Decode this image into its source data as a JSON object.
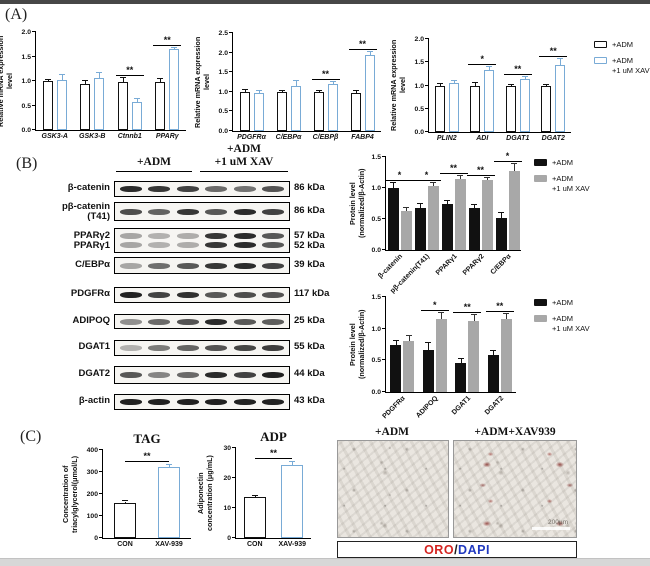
{
  "panels": {
    "a": "(A)",
    "b": "(B)",
    "c": "(C)"
  },
  "colors": {
    "bar_blue_outline": "#79abd6",
    "bar_black": "#111111",
    "bar_gray": "#a8a8a8",
    "oro_red": "#d42421",
    "dapi_blue": "#2039c0"
  },
  "legend_mrna": {
    "items": [
      {
        "label": "+ADM",
        "swatch": "outline-black"
      },
      {
        "label": "+ADM\n+1 uM XAV",
        "swatch": "outline-blue"
      }
    ]
  },
  "legend_protein": {
    "items": [
      {
        "label": "+ADM",
        "swatch": "solid-black"
      },
      {
        "label": "+ADM\n+1 uM XAV",
        "swatch": "solid-gray"
      }
    ]
  },
  "chart_data": [
    {
      "id": "a1",
      "type": "bar",
      "title": "",
      "xlabel": "",
      "ylabel": "Relative mRNA expression level",
      "ylim": [
        0,
        2.0
      ],
      "yticks": [
        "0.0",
        "0.5",
        "1.0",
        "1.5",
        "2.0"
      ],
      "categories": [
        "GSK3-A",
        "GSK3-B",
        "Ctnnb1",
        "PPARγ"
      ],
      "series": [
        {
          "name": "+ADM",
          "values": [
            1.0,
            0.93,
            0.98,
            0.98
          ],
          "errors": [
            0.03,
            0.08,
            0.09,
            0.06
          ]
        },
        {
          "name": "+ADM +1 uM XAV",
          "values": [
            1.03,
            1.07,
            0.58,
            1.65
          ],
          "errors": [
            0.09,
            0.1,
            0.06,
            0.03
          ]
        }
      ],
      "significance": [
        null,
        null,
        "**",
        "**"
      ]
    },
    {
      "id": "a2",
      "type": "bar",
      "title": "",
      "xlabel": "",
      "ylabel": "Relative mRNA expression level",
      "ylim": [
        0,
        2.5
      ],
      "yticks": [
        "0.0",
        "0.5",
        "1.0",
        "1.5",
        "2.0",
        "2.5"
      ],
      "categories": [
        "PDGFRα",
        "C/EBPα",
        "C/EBPβ",
        "FABP4"
      ],
      "series": [
        {
          "name": "+ADM",
          "values": [
            1.0,
            1.0,
            1.0,
            0.98
          ],
          "errors": [
            0.05,
            0.03,
            0.03,
            0.05
          ]
        },
        {
          "name": "+ADM +1 uM XAV",
          "values": [
            0.98,
            1.15,
            1.19,
            1.93
          ],
          "errors": [
            0.04,
            0.13,
            0.05,
            0.08
          ]
        }
      ],
      "significance": [
        null,
        null,
        "**",
        "**"
      ]
    },
    {
      "id": "a3",
      "type": "bar",
      "title": "",
      "xlabel": "",
      "ylabel": "Relative mRNA expression level",
      "ylim": [
        0,
        2.0
      ],
      "yticks": [
        "0.0",
        "0.5",
        "1.0",
        "1.5",
        "2.0"
      ],
      "categories": [
        "PLIN2",
        "ADI",
        "DGAT1",
        "DGAT2"
      ],
      "series": [
        {
          "name": "+ADM",
          "values": [
            0.98,
            0.98,
            0.98,
            0.98
          ],
          "errors": [
            0.05,
            0.08,
            0.03,
            0.03
          ]
        },
        {
          "name": "+ADM +1 uM XAV",
          "values": [
            1.05,
            1.33,
            1.15,
            1.45
          ],
          "errors": [
            0.05,
            0.07,
            0.04,
            0.12
          ]
        }
      ],
      "significance": [
        null,
        "*",
        "**",
        "**"
      ]
    },
    {
      "id": "b1",
      "type": "bar",
      "title": "",
      "xlabel": "",
      "ylabel": "Protein level\n(normalized/β-Actin)",
      "ylim": [
        0,
        1.5
      ],
      "yticks": [
        "0.0",
        "0.5",
        "1.0",
        "1.5"
      ],
      "categories": [
        "β-catenin",
        "pβ-catenin(T41)",
        "PPARγ1",
        "PPARγ2",
        "C/EBPα"
      ],
      "series": [
        {
          "name": "+ADM",
          "values": [
            1.0,
            0.68,
            0.75,
            0.68,
            0.51
          ],
          "errors": [
            0.08,
            0.07,
            0.04,
            0.04,
            0.09
          ]
        },
        {
          "name": "+ADM +1 uM XAV",
          "values": [
            0.63,
            1.04,
            1.15,
            1.13,
            1.27
          ],
          "errors": [
            0.04,
            0.04,
            0.05,
            0.03,
            0.12
          ]
        }
      ],
      "significance": [
        "*",
        "*",
        "**",
        "**",
        "*"
      ]
    },
    {
      "id": "b2",
      "type": "bar",
      "title": "",
      "xlabel": "",
      "ylabel": "Protein level\n(normalized/β-Actin)",
      "ylim": [
        0,
        1.5
      ],
      "yticks": [
        "0.0",
        "0.5",
        "1.0",
        "1.5"
      ],
      "categories": [
        "PDGFRα",
        "ADIPOQ",
        "DGAT1",
        "DGAT2"
      ],
      "series": [
        {
          "name": "+ADM",
          "values": [
            0.74,
            0.67,
            0.46,
            0.59
          ],
          "errors": [
            0.06,
            0.1,
            0.06,
            0.05
          ]
        },
        {
          "name": "+ADM +1 uM XAV",
          "values": [
            0.81,
            1.16,
            1.12,
            1.15
          ],
          "errors": [
            0.07,
            0.09,
            0.1,
            0.08
          ]
        }
      ],
      "significance": [
        null,
        "*",
        "**",
        "**"
      ]
    },
    {
      "id": "ctag",
      "type": "bar",
      "title": "TAG",
      "xlabel": "",
      "ylabel": "Concentration of triacylglycerol(μmol/L)",
      "ylim": [
        0,
        400
      ],
      "yticks": [
        "0",
        "100",
        "200",
        "300",
        "400"
      ],
      "categories": [
        "CON",
        "XAV-939"
      ],
      "series": [
        {
          "name": "",
          "values": [
            160,
            325
          ],
          "errors": [
            6,
            9
          ]
        }
      ],
      "significance_overall": "**"
    },
    {
      "id": "cadp",
      "type": "bar",
      "title": "ADP",
      "xlabel": "",
      "ylabel": "Adiponectin concentration (μg/mL)",
      "ylim": [
        0,
        30
      ],
      "yticks": [
        "0",
        "10",
        "20",
        "30"
      ],
      "categories": [
        "CON",
        "XAV-939"
      ],
      "series": [
        {
          "name": "",
          "values": [
            13.8,
            24.5
          ],
          "errors": [
            0.3,
            0.9
          ]
        }
      ],
      "significance_overall": "**"
    }
  ],
  "blots": {
    "headers": [
      "+ADM",
      "+ADM\n+1 uM XAV"
    ],
    "rows": [
      {
        "protein": "β-catenin",
        "kda": "86 kDa",
        "bands": 1,
        "intensities": [
          0.9,
          0.85,
          0.8,
          0.62,
          0.58,
          0.72
        ]
      },
      {
        "protein": "pβ-catenin\n(T41)",
        "kda": "86 kDa",
        "bands": 1,
        "intensities": [
          0.75,
          0.65,
          0.85,
          0.7,
          0.9,
          0.8
        ]
      },
      {
        "protein": "PPARγ2\nPPARγ1",
        "kda": "57 kDa\n52 kDa",
        "bands": 2,
        "intensities": [
          0.35,
          0.3,
          0.32,
          0.85,
          0.9,
          0.7
        ]
      },
      {
        "protein": "C/EBPα",
        "kda": "39 kDa",
        "bands": 1,
        "intensities": [
          0.35,
          0.6,
          0.7,
          0.85,
          0.9,
          0.8
        ]
      },
      {
        "protein": "PDGFRα",
        "kda": "117 kDa",
        "bands": 1,
        "intensities": [
          0.95,
          0.8,
          0.88,
          0.7,
          0.75,
          0.72
        ]
      },
      {
        "protein": "ADIPOQ",
        "kda": "25 kDa",
        "bands": 1,
        "intensities": [
          0.45,
          0.62,
          0.72,
          0.9,
          0.7,
          0.68
        ]
      },
      {
        "protein": "DGAT1",
        "kda": "55 kDa",
        "bands": 1,
        "intensities": [
          0.3,
          0.55,
          0.65,
          0.72,
          0.78,
          0.82
        ]
      },
      {
        "protein": "DGAT2",
        "kda": "44 kDa",
        "bands": 1,
        "intensities": [
          0.7,
          0.5,
          0.62,
          0.9,
          0.8,
          0.95
        ]
      },
      {
        "protein": "β-actin",
        "kda": "43 kDa",
        "bands": 1,
        "intensities": [
          0.95,
          0.95,
          0.95,
          0.95,
          0.95,
          0.95
        ]
      }
    ]
  },
  "microscopy": {
    "images": [
      {
        "label": "+ADM"
      },
      {
        "label": "+ADM+XAV939",
        "scale_text": "200μm"
      }
    ],
    "caption": [
      {
        "text": "ORO",
        "color": "#d42421"
      },
      {
        "text": "/",
        "color": "#1a1a1a"
      },
      {
        "text": "DAPI",
        "color": "#2039c0"
      }
    ]
  }
}
